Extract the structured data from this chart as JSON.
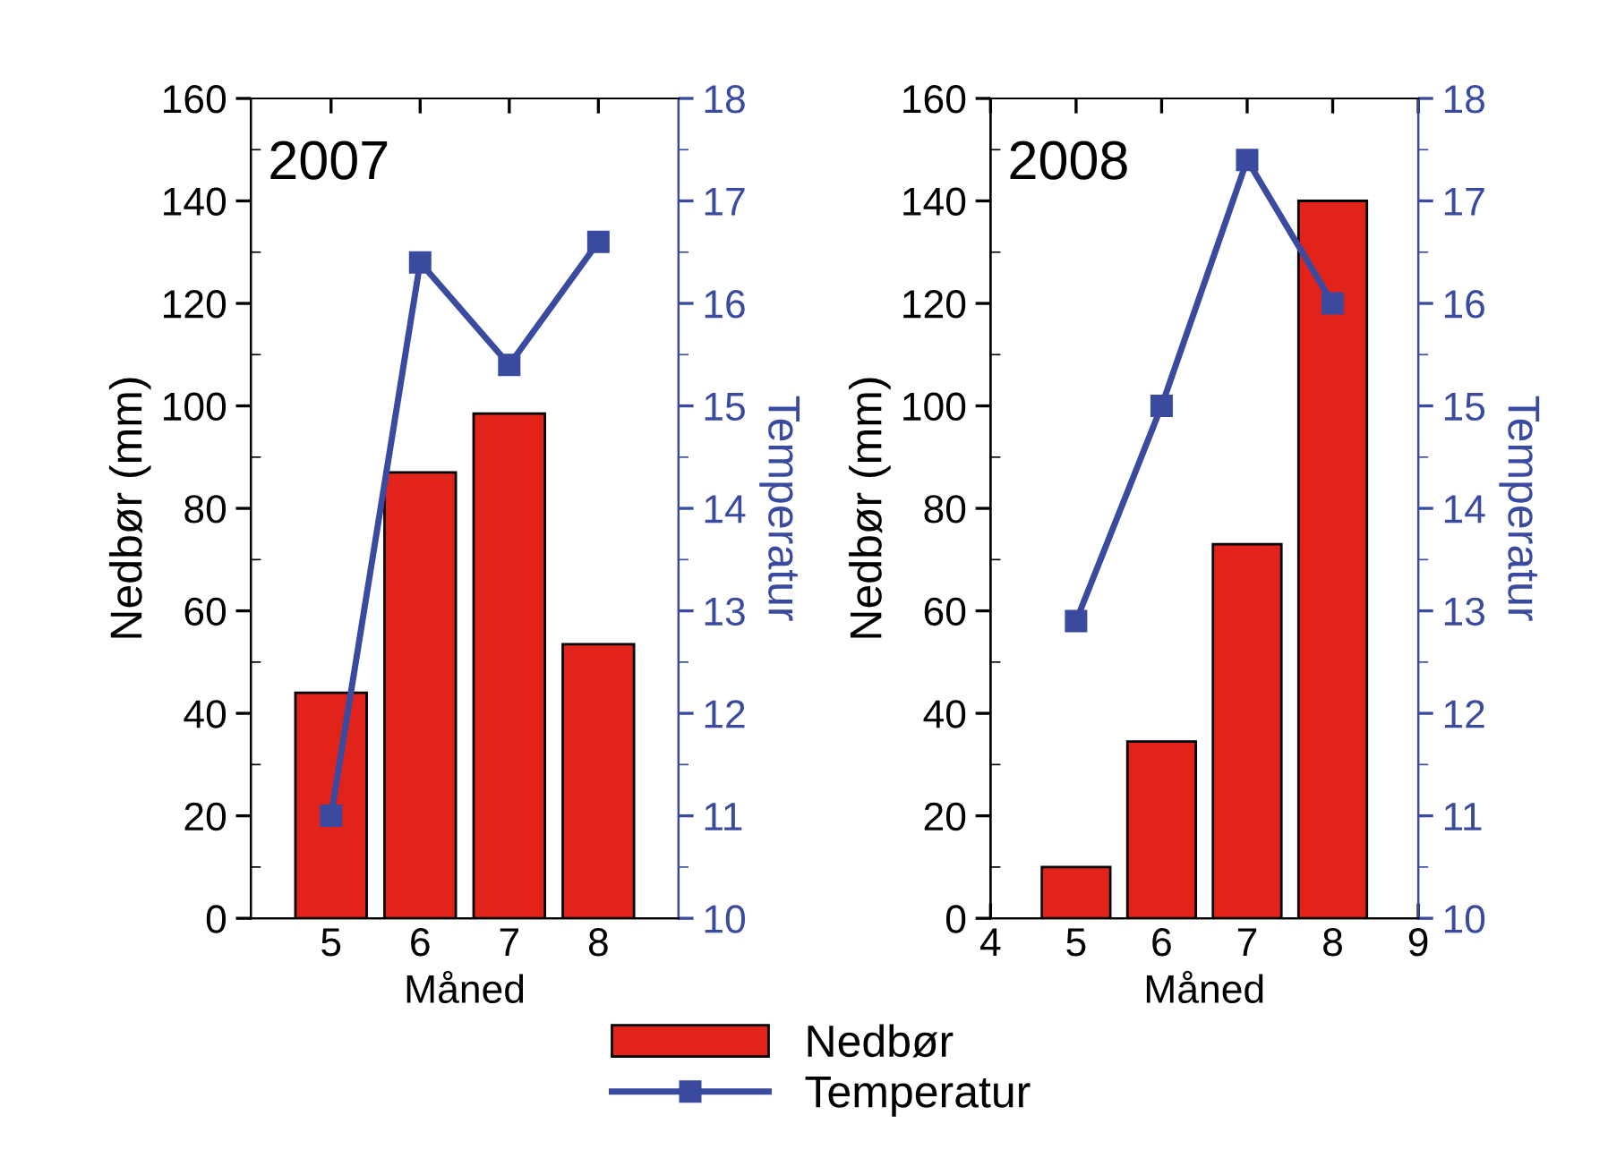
{
  "chart_data": [
    {
      "type": "bar",
      "title": "2007",
      "xlabel": "Måned",
      "ylabel": "Nedbør (mm)",
      "y2label": "Temperatur",
      "x": [
        5,
        6,
        7,
        8
      ],
      "xlim": [
        4.1,
        8.9
      ],
      "xticks": [
        5,
        6,
        7,
        8
      ],
      "ylim": [
        0,
        160
      ],
      "yticks": [
        0,
        20,
        40,
        60,
        80,
        100,
        120,
        140,
        160
      ],
      "y2lim": [
        10,
        18
      ],
      "y2ticks": [
        10,
        11,
        12,
        13,
        14,
        15,
        16,
        17,
        18
      ],
      "grid": false,
      "legend": "bottom right",
      "series": [
        {
          "name": "Nedbør",
          "color": "#e2231a",
          "values": [
            44,
            87,
            98.5,
            53.5
          ]
        },
        {
          "name": "Temperatur",
          "type": "line",
          "axis": "y2",
          "color": "#3a4a9f",
          "marker": "square",
          "values": [
            11.0,
            16.4,
            15.4,
            16.6
          ]
        }
      ]
    },
    {
      "type": "bar",
      "title": "2008",
      "xlabel": "Måned",
      "ylabel": "Nedbør (mm)",
      "y2label": "Temperatur",
      "x": [
        5,
        6,
        7,
        8
      ],
      "xlim": [
        4,
        9
      ],
      "xticks": [
        4,
        5,
        6,
        7,
        8,
        9
      ],
      "ylim": [
        0,
        160
      ],
      "yticks": [
        0,
        20,
        40,
        60,
        80,
        100,
        120,
        140,
        160
      ],
      "y2lim": [
        10,
        18
      ],
      "y2ticks": [
        10,
        11,
        12,
        13,
        14,
        15,
        16,
        17,
        18
      ],
      "grid": false,
      "series": [
        {
          "color": "#e2231a",
          "values": [
            10,
            34.5,
            73,
            140
          ]
        },
        {
          "type": "line",
          "axis": "y2",
          "color": "#3a4a9f",
          "marker": "square",
          "values": [
            12.9,
            15.0,
            17.4,
            16.0
          ]
        }
      ]
    }
  ]
}
